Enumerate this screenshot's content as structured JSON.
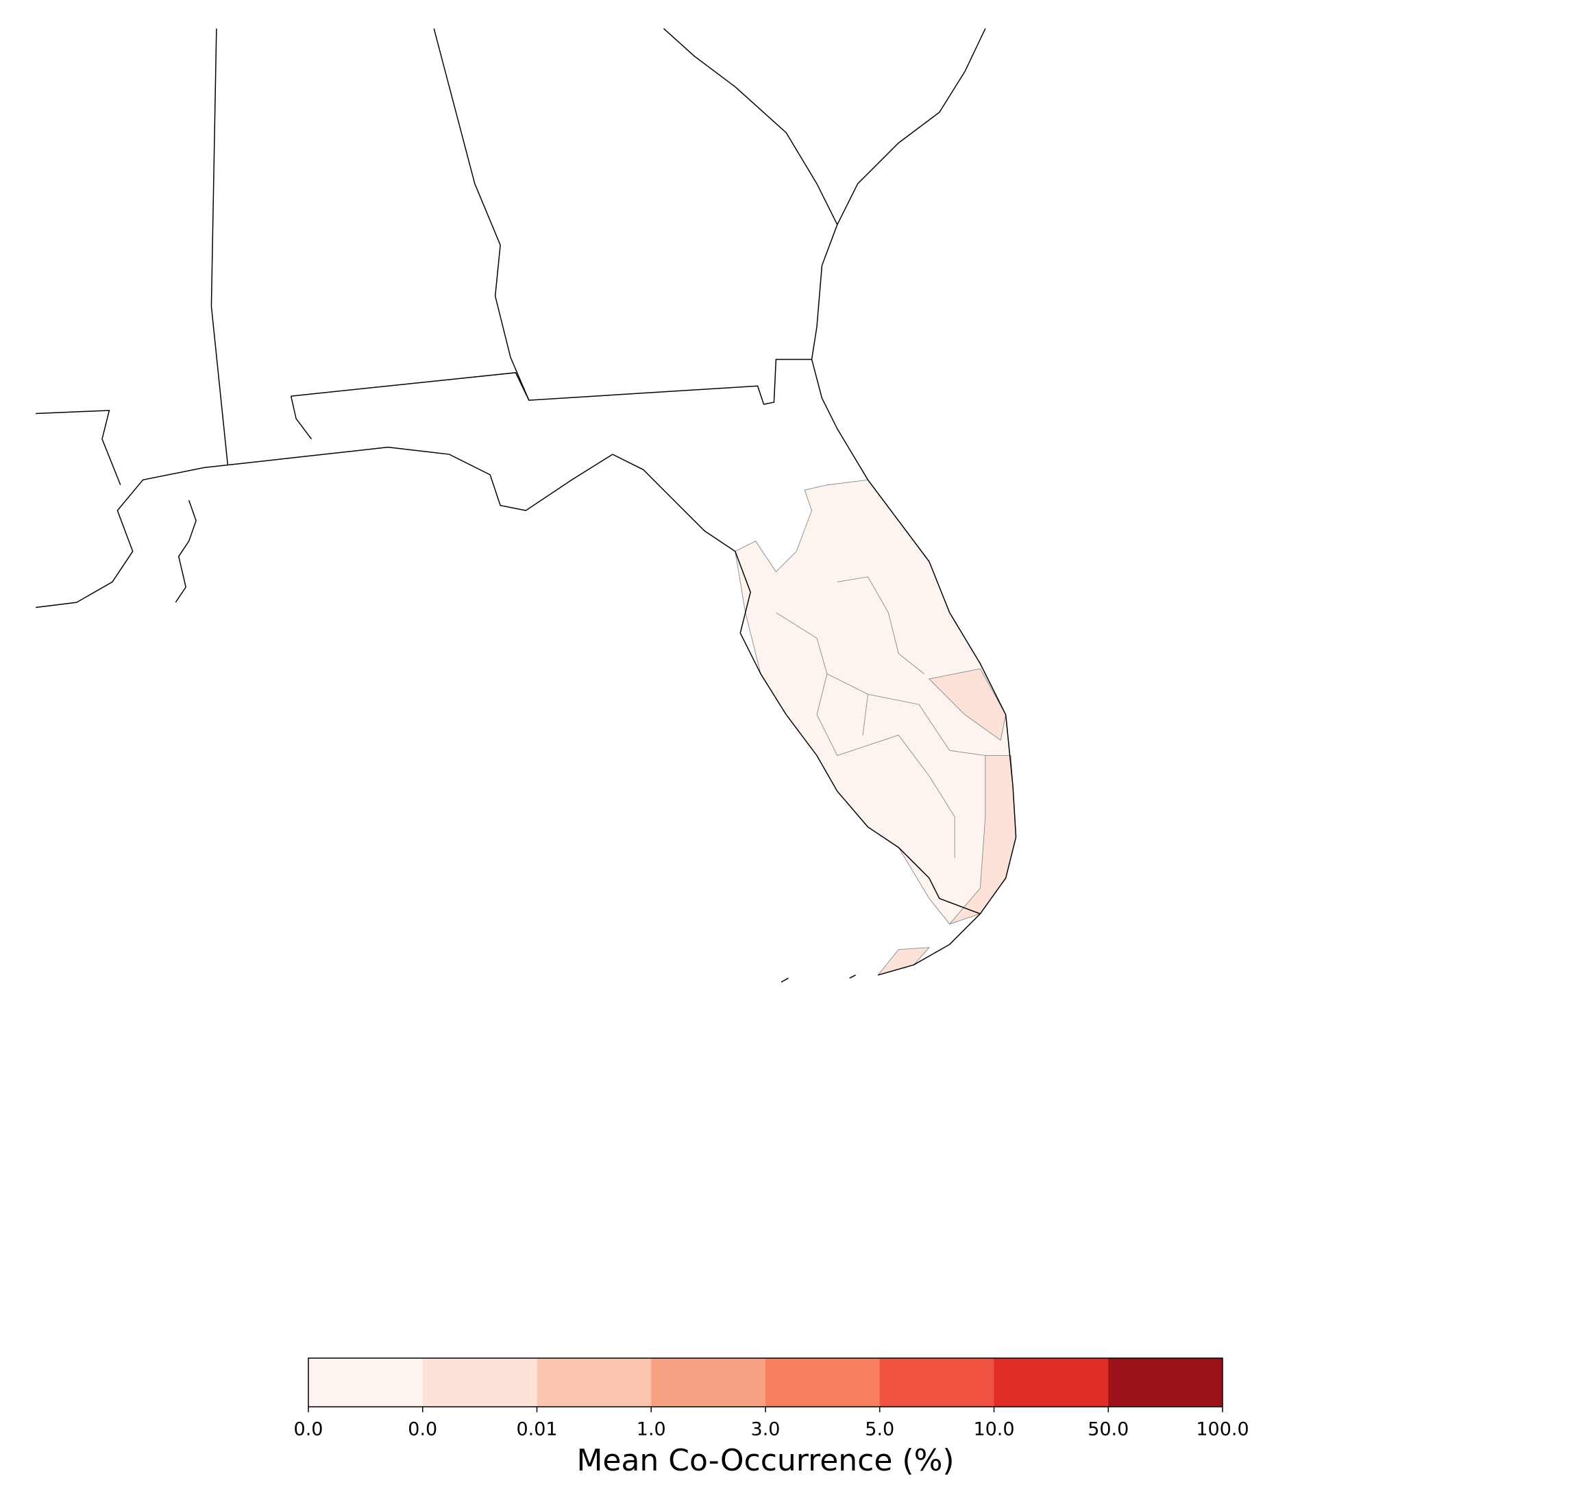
{
  "chart_data": {
    "type": "choropleth",
    "colorbar": {
      "label": "Mean Co-Occurrence (%)",
      "ticks": [
        {
          "value": 0,
          "label": "0.0"
        },
        {
          "value": 0.001,
          "label": "0.0"
        },
        0.01,
        {
          "value": 1,
          "label": "1.0"
        },
        {
          "value": 3,
          "label": "3.0"
        },
        {
          "value": 5,
          "label": "5.0"
        },
        {
          "value": 10,
          "label": "10.0"
        },
        {
          "value": 50,
          "label": "50.0"
        },
        {
          "value": 100,
          "label": "100.0"
        }
      ],
      "colors": [
        "#fdf3ef",
        "#fde2d8",
        "#fbc4ac",
        "#f8a283",
        "#f77f5f",
        "#ef5240",
        "#e12e28",
        "#9b1218"
      ]
    }
  }
}
